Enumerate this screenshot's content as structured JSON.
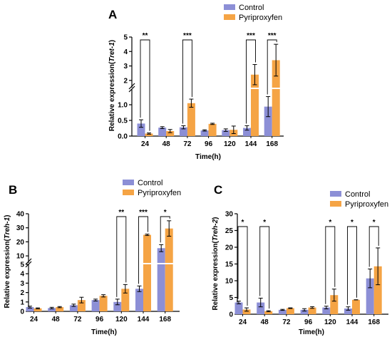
{
  "colors": {
    "control": "#8c8fd6",
    "pyriproxyfen": "#f5a445",
    "axis": "#000000"
  },
  "chart_data": [
    {
      "type": "bar",
      "panel": "A",
      "xlabel": "Time(h)",
      "ylabel_prefix": "Relative expression(",
      "ylabel_gene": "Tret-1",
      "ylabel_suffix": ")",
      "categories": [
        "24",
        "48",
        "72",
        "96",
        "120",
        "144",
        "168"
      ],
      "series": [
        {
          "name": "Control",
          "values": [
            0.4,
            0.27,
            0.28,
            0.18,
            0.19,
            0.26,
            0.94
          ],
          "errors": [
            0.12,
            0.03,
            0.05,
            0.02,
            0.04,
            0.07,
            0.32
          ]
        },
        {
          "name": "Pyriproxyfen",
          "values": [
            0.08,
            0.16,
            1.05,
            0.39,
            0.2,
            2.4,
            3.4
          ],
          "errors": [
            0.02,
            0.05,
            0.13,
            0.02,
            0.12,
            0.7,
            1.1
          ]
        }
      ],
      "ylim_lower": [
        0,
        1.5
      ],
      "ylim_upper": [
        1.5,
        5
      ],
      "yticks_lower": [
        "0.0",
        "0.5",
        "1.0"
      ],
      "yticks_upper": [
        "2",
        "3",
        "4",
        "5"
      ],
      "significance": [
        "**",
        "",
        "***",
        "",
        "",
        "***",
        "***"
      ],
      "legend_position": "top-right"
    },
    {
      "type": "bar",
      "panel": "B",
      "xlabel": "Time(h)",
      "ylabel_prefix": "Relative expression(",
      "ylabel_gene": "Treh-1",
      "ylabel_suffix": ")",
      "categories": [
        "24",
        "48",
        "72",
        "96",
        "120",
        "144",
        "168"
      ],
      "series": [
        {
          "name": "Control",
          "values": [
            0.45,
            0.35,
            0.65,
            1.2,
            1.0,
            2.4,
            15.5
          ],
          "errors": [
            0.1,
            0.08,
            0.12,
            0.1,
            0.3,
            0.3,
            2.5
          ]
        },
        {
          "name": "Pyriproxyfen",
          "values": [
            0.32,
            0.45,
            1.2,
            1.65,
            2.4,
            25.0,
            29.5
          ],
          "errors": [
            0.05,
            0.06,
            0.3,
            0.12,
            0.45,
            0.5,
            5.5
          ]
        }
      ],
      "ylim_lower": [
        0,
        5
      ],
      "ylim_upper": [
        5,
        40
      ],
      "yticks_lower": [
        "0",
        "1",
        "2",
        "3",
        "4",
        "5"
      ],
      "yticks_upper": [
        "10",
        "20",
        "30",
        "40"
      ],
      "significance": [
        "",
        "",
        "",
        "",
        "**",
        "***",
        "*"
      ],
      "legend_position": "top-right"
    },
    {
      "type": "bar",
      "panel": "C",
      "xlabel": "Time(h)",
      "ylabel_prefix": "Relative expression(",
      "ylabel_gene": "Treh-2",
      "ylabel_suffix": ")",
      "categories": [
        "24",
        "48",
        "72",
        "96",
        "120",
        "144",
        "168"
      ],
      "series": [
        {
          "name": "Control",
          "values": [
            3.5,
            3.5,
            1.3,
            1.3,
            2.0,
            1.7,
            10.7
          ],
          "errors": [
            0.4,
            1.3,
            0.15,
            0.35,
            0.4,
            0.5,
            2.8
          ]
        },
        {
          "name": "Pyriproxyfen",
          "values": [
            1.4,
            0.9,
            1.8,
            2.0,
            5.7,
            4.3,
            14.3
          ],
          "errors": [
            0.5,
            0.15,
            0.1,
            0.25,
            1.8,
            0.0,
            5.5
          ]
        }
      ],
      "ylim": [
        0,
        30
      ],
      "yticks": [
        "0",
        "5",
        "10",
        "15",
        "20",
        "25",
        "30"
      ],
      "significance": [
        "*",
        "*",
        "",
        "",
        "*",
        "*",
        "*"
      ],
      "legend_position": "top-right"
    }
  ]
}
